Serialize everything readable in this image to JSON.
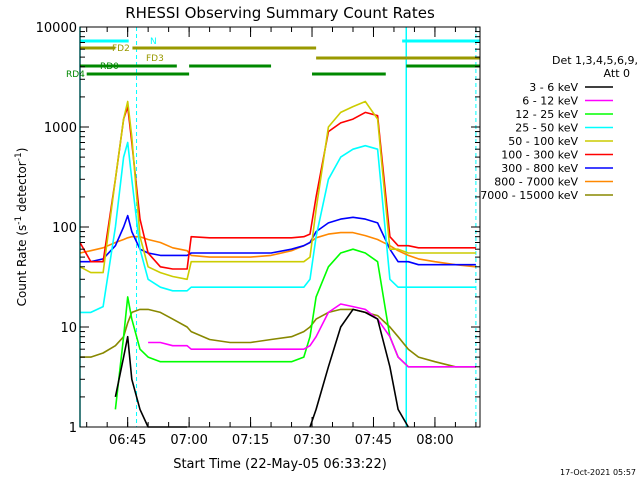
{
  "chart_data": {
    "type": "line",
    "title": "RHESSI Observing Summary Count Rates",
    "xlabel": "Start Time (22-May-05 06:33:22)",
    "ylabel_main": "Count Rate (s",
    "ylabel_sup1": "-1",
    "ylabel_mid": " detector",
    "ylabel_sup2": "-1",
    "ylabel_end": ")",
    "y_scale": "log",
    "ylim": [
      1,
      10000
    ],
    "xlim": [
      "06:33:22",
      "08:11:00"
    ],
    "x_ticks": [
      "06:45",
      "07:00",
      "07:15",
      "07:30",
      "07:45",
      "08:00"
    ],
    "y_ticks": [
      "1",
      "10",
      "100",
      "1000",
      "10000"
    ],
    "legend_position": "right",
    "legend_title_line1": "Det 1,3,4,5,6,9,",
    "legend_title_line2": "Att 0",
    "timestamp": "17-Oct-2021 05:57",
    "flag_labels": [
      "N",
      "FD2",
      "FD3",
      "RD0",
      "RD4"
    ],
    "flags": [
      {
        "name": "N",
        "color": "#00ffff",
        "segments": [
          [
            "06:33:22",
            "06:45:15"
          ],
          [
            "07:52:00",
            "08:11:00"
          ]
        ]
      },
      {
        "name": "FD2",
        "color": "#999900",
        "segments": [
          [
            "06:33:22",
            "06:42:00"
          ],
          [
            "06:46:10",
            "07:31:00"
          ]
        ]
      },
      {
        "name": "FD3",
        "color": "#999900",
        "segments": [
          [
            "07:31:00",
            "07:53:00"
          ],
          [
            "07:53:00",
            "08:11:00"
          ]
        ]
      },
      {
        "name": "RD0",
        "color": "#008800",
        "segments": [
          [
            "06:33:22",
            "06:57:00"
          ],
          [
            "07:00:00",
            "07:20:00"
          ],
          [
            "07:53:00",
            "08:11:00"
          ]
        ]
      },
      {
        "name": "RD4",
        "color": "#008800",
        "segments": [
          [
            "06:35:00",
            "07:00:00"
          ],
          [
            "07:30:00",
            "07:48:00"
          ]
        ]
      }
    ],
    "eclipse_markers": [
      "06:33:22",
      "07:53:00"
    ],
    "saa_markers": [
      "06:47:10",
      "08:10:00"
    ],
    "x_times": [
      "06:33:22",
      "06:36",
      "06:39",
      "06:42",
      "06:44",
      "06:45",
      "06:46",
      "06:48",
      "06:50",
      "06:53",
      "06:56",
      "06:59:30",
      "07:00:30",
      "07:05",
      "07:10",
      "07:15",
      "07:20",
      "07:25",
      "07:28",
      "07:29:30",
      "07:31",
      "07:34",
      "07:37",
      "07:40",
      "07:43",
      "07:46",
      "07:49",
      "07:51",
      "07:53:30",
      "07:56",
      "08:00",
      "08:05",
      "08:10"
    ],
    "series": [
      {
        "name": "3 - 6 keV",
        "color": "#000000",
        "values": [
          null,
          null,
          null,
          2.0,
          5.0,
          8.0,
          3.0,
          1.5,
          1.0,
          1.0,
          1.0,
          1.0,
          null,
          null,
          null,
          null,
          null,
          null,
          null,
          1.0,
          1.5,
          4.0,
          10,
          15,
          14,
          12,
          4.0,
          1.5,
          1.0,
          null,
          null,
          null,
          null
        ]
      },
      {
        "name": "6 - 12 keV",
        "color": "#ff00ff",
        "values": [
          null,
          null,
          null,
          null,
          null,
          null,
          null,
          null,
          7.0,
          7.0,
          6.5,
          6.5,
          6.0,
          6.0,
          6.0,
          6.0,
          6.0,
          6.0,
          6.0,
          6.5,
          8.0,
          14,
          17,
          16,
          15,
          12,
          8.0,
          5.0,
          4.0,
          4.0,
          4.0,
          4.0,
          4.0
        ]
      },
      {
        "name": "12 - 25 keV",
        "color": "#00ff00",
        "values": [
          null,
          null,
          null,
          1.5,
          8.0,
          20,
          12,
          6.0,
          5.0,
          4.5,
          4.5,
          4.5,
          4.5,
          4.5,
          4.5,
          4.5,
          4.5,
          4.5,
          5.0,
          8.0,
          20,
          40,
          55,
          60,
          55,
          45,
          8.0,
          5.0,
          4.0,
          4.0,
          4.0,
          4.0,
          4.0
        ]
      },
      {
        "name": "25 - 50 keV",
        "color": "#00ffff",
        "values": [
          14,
          14,
          16,
          100,
          500,
          700,
          300,
          60,
          30,
          25,
          23,
          23,
          25,
          25,
          25,
          25,
          25,
          25,
          25,
          30,
          80,
          300,
          500,
          600,
          650,
          600,
          30,
          25,
          25,
          25,
          25,
          25,
          25
        ]
      },
      {
        "name": "50 - 100 keV",
        "color": "#cccc00",
        "values": [
          40,
          35,
          35,
          300,
          1200,
          1800,
          800,
          80,
          40,
          35,
          32,
          30,
          45,
          45,
          45,
          45,
          45,
          45,
          45,
          50,
          150,
          1000,
          1400,
          1600,
          1800,
          1200,
          60,
          60,
          55,
          55,
          55,
          55,
          55
        ]
      },
      {
        "name": "100 - 300 keV",
        "color": "#ff0000",
        "values": [
          70,
          45,
          45,
          300,
          1200,
          1600,
          700,
          120,
          55,
          40,
          38,
          38,
          80,
          78,
          78,
          78,
          78,
          78,
          80,
          85,
          200,
          900,
          1100,
          1200,
          1400,
          1300,
          80,
          65,
          65,
          62,
          62,
          62,
          62
        ]
      },
      {
        "name": "300 - 800 keV",
        "color": "#0000ff",
        "values": [
          45,
          45,
          48,
          65,
          100,
          130,
          90,
          60,
          55,
          52,
          52,
          52,
          55,
          55,
          55,
          55,
          55,
          60,
          65,
          70,
          90,
          110,
          120,
          125,
          120,
          110,
          60,
          45,
          45,
          42,
          42,
          42,
          42
        ]
      },
      {
        "name": "800 - 7000 keV",
        "color": "#ff8800",
        "values": [
          55,
          58,
          62,
          70,
          75,
          78,
          80,
          80,
          75,
          70,
          62,
          58,
          52,
          50,
          50,
          50,
          52,
          58,
          65,
          70,
          78,
          85,
          88,
          88,
          82,
          75,
          65,
          58,
          52,
          48,
          45,
          42,
          40
        ]
      },
      {
        "name": "7000 - 15000 keV",
        "color": "#888800",
        "values": [
          5.0,
          5.0,
          5.5,
          6.5,
          8.0,
          11,
          14,
          15,
          15,
          14,
          12,
          10,
          9.0,
          7.5,
          7.0,
          7.0,
          7.5,
          8.0,
          9.0,
          10,
          12,
          14,
          15,
          15,
          14,
          13,
          10,
          8.0,
          6.0,
          5.0,
          4.5,
          4.0,
          4.0
        ]
      }
    ]
  }
}
